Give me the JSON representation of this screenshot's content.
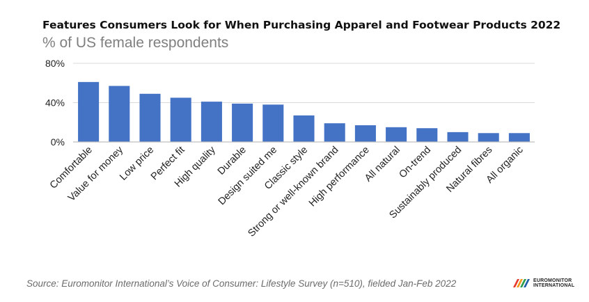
{
  "title": "Features Consumers Look for When Purchasing Apparel and Footwear Products 2022",
  "subtitle": "% of US female respondents",
  "source": "Source: Euromonitor International’s Voice of Consumer: Lifestyle Survey (n=510), fielded Jan-Feb 2022",
  "logo": {
    "line1": "EUROMONITOR",
    "line2": "INTERNATIONAL"
  },
  "colors": {
    "bar": "#4472c4",
    "axis": "#bfbfbf",
    "grid": "#d9d9d9",
    "text": "#222222"
  },
  "chart_data": {
    "type": "bar",
    "title": "Features Consumers Look for When Purchasing Apparel and Footwear Products 2022",
    "subtitle": "% of US female respondents",
    "categories": [
      "Comfortable",
      "Value for money",
      "Low price",
      "Perfect fit",
      "High quality",
      "Durable",
      "Design suited me",
      "Classic style",
      "Strong or well-known brand",
      "High performance",
      "All natural",
      "On-trend",
      "Sustainably produced",
      "Natural fibres",
      "All organic"
    ],
    "values": [
      61,
      57,
      49,
      45,
      41,
      39,
      38,
      27,
      19,
      17,
      15,
      14,
      10,
      9,
      9
    ],
    "unit": "%",
    "ylim": [
      0,
      80
    ],
    "yticks": [
      0,
      40,
      80
    ],
    "ytick_labels": [
      "0%",
      "40%",
      "80%"
    ],
    "grid": true,
    "legend": "none"
  }
}
